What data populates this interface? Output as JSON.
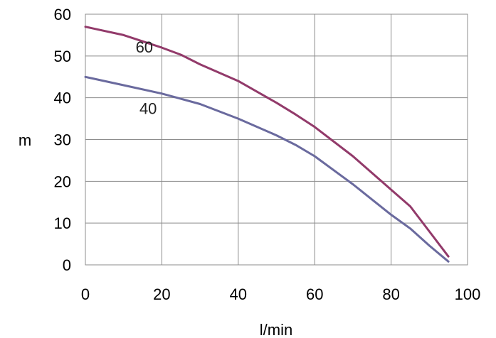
{
  "chart_data": {
    "type": "line",
    "title": "",
    "xlabel": "l/min",
    "ylabel": "m",
    "xlim": [
      0,
      100
    ],
    "ylim": [
      0,
      60
    ],
    "xticks": [
      0,
      20,
      40,
      60,
      80,
      100
    ],
    "yticks": [
      0,
      10,
      20,
      30,
      40,
      50,
      60
    ],
    "grid": true,
    "legend": "none",
    "series": [
      {
        "label": "60",
        "color": "#923a6a",
        "x": [
          0,
          10,
          20,
          25,
          30,
          40,
          50,
          55,
          60,
          70,
          80,
          85,
          90,
          95
        ],
        "y": [
          57,
          55,
          52,
          50.3,
          48,
          44,
          38.8,
          36,
          33,
          26,
          18,
          14,
          8,
          2
        ]
      },
      {
        "label": "40",
        "color": "#6a6a9e",
        "x": [
          0,
          10,
          20,
          30,
          40,
          50,
          55,
          60,
          70,
          80,
          85,
          90,
          95
        ],
        "y": [
          45,
          43,
          41,
          38.5,
          35,
          31,
          28.7,
          26,
          19.3,
          12,
          8.7,
          4.6,
          0.8
        ]
      }
    ]
  }
}
